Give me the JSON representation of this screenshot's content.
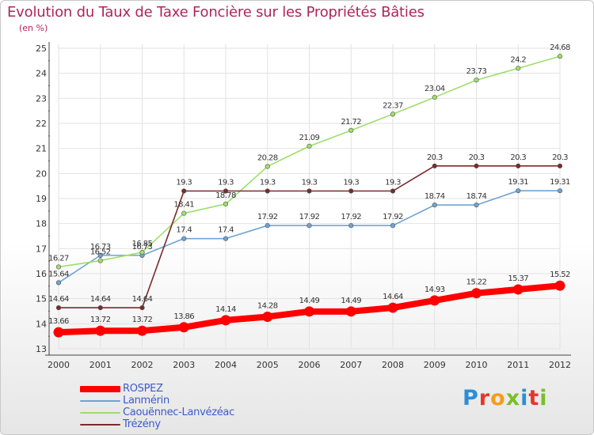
{
  "header": {
    "title": "Evolution du Taux de Taxe Foncière sur les Propriétés Bâties",
    "unit": "(en %)"
  },
  "brand": {
    "text": "Proxiti",
    "colors": [
      "#2a8fd8",
      "#e6372c",
      "#f59c1a",
      "#7bbf2a",
      "#2a8fd8",
      "#e6372c",
      "#7bbf2a"
    ]
  },
  "chart_data": {
    "type": "line",
    "x": [
      "2000",
      "2001",
      "2002",
      "2003",
      "2004",
      "2005",
      "2006",
      "2007",
      "2008",
      "2009",
      "2010",
      "2011",
      "2012"
    ],
    "ylim": [
      13,
      25
    ],
    "yticks": [
      13,
      14,
      15,
      16,
      17,
      18,
      19,
      20,
      21,
      22,
      23,
      24,
      25
    ],
    "grid": true,
    "legend_position": "bottom-left",
    "series": [
      {
        "name": "ROSPEZ",
        "color": "#ff0000",
        "values": [
          13.66,
          13.72,
          13.72,
          13.86,
          14.14,
          14.28,
          14.49,
          14.49,
          14.64,
          14.93,
          15.22,
          15.37,
          15.52
        ],
        "labels": [
          "13.66",
          "13.72",
          "13.72",
          "13.86",
          "14.14",
          "14.28",
          "14.49",
          "14.49",
          "14.64",
          "14.93",
          "15.22",
          "15.37",
          "15.52"
        ]
      },
      {
        "name": "Lanmérin",
        "color": "#6fa3d3",
        "values": [
          15.64,
          16.73,
          16.73,
          17.4,
          17.4,
          17.92,
          17.92,
          17.92,
          17.92,
          18.74,
          18.74,
          19.31,
          19.31
        ],
        "labels": [
          "15.64",
          "16.73",
          "16.73",
          "17.4",
          "17.4",
          "17.92",
          "17.92",
          "17.92",
          "17.92",
          "18.74",
          "18.74",
          "19.31",
          "19.31"
        ]
      },
      {
        "name": "Caouënnec-Lanvézéac",
        "color": "#9ede6a",
        "values": [
          16.27,
          16.52,
          16.85,
          18.41,
          18.78,
          20.28,
          21.09,
          21.72,
          22.37,
          23.04,
          23.73,
          24.2,
          24.68
        ],
        "labels": [
          "16.27",
          "16.52",
          "16.85",
          "18.41",
          "18.78",
          "20.28",
          "21.09",
          "21.72",
          "22.37",
          "23.04",
          "23.73",
          "24.2",
          "24.68"
        ]
      },
      {
        "name": "Trézény",
        "color": "#7a2a2a",
        "values": [
          14.64,
          14.64,
          14.64,
          19.3,
          19.3,
          19.3,
          19.3,
          19.3,
          19.3,
          20.3,
          20.3,
          20.3,
          20.3
        ],
        "labels": [
          "14.64",
          "14.64",
          "14.64",
          "19.3",
          "19.3",
          "19.3",
          "19.3",
          "19.3",
          "19.3",
          "20.3",
          "20.3",
          "20.3",
          "20.3"
        ]
      }
    ]
  }
}
